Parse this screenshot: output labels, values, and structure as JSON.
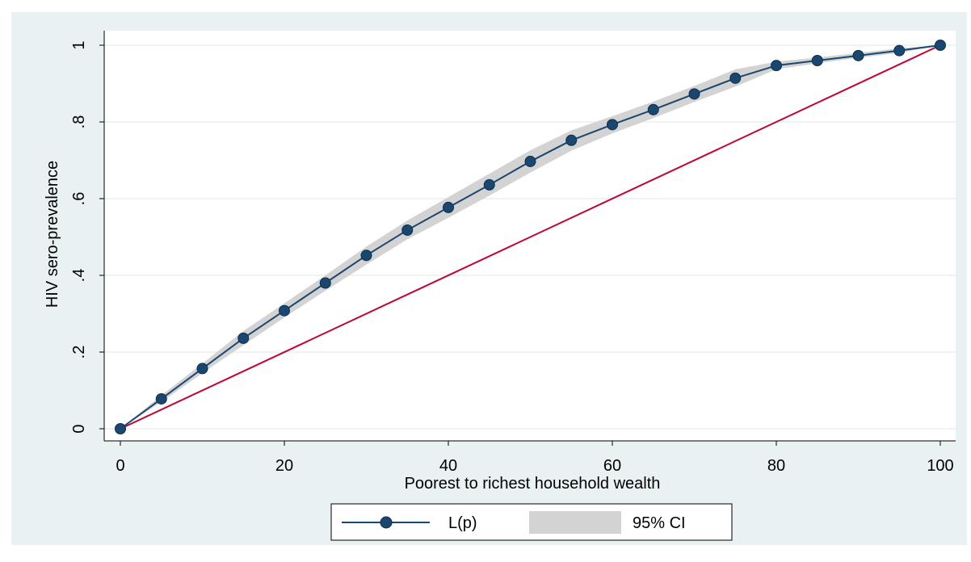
{
  "chart_data": {
    "type": "line",
    "xlabel": "Poorest to richest household wealth",
    "ylabel": "HIV sero-prevalence",
    "xlim": [
      0,
      100
    ],
    "ylim": [
      0,
      1
    ],
    "x_ticks": [
      "0",
      "20",
      "40",
      "60",
      "80",
      "100"
    ],
    "y_ticks": [
      "0",
      ".2",
      ".4",
      ".6",
      ".8",
      "1"
    ],
    "grid": true,
    "legend_position": "bottom",
    "legend": [
      "L(p)",
      "95% CI"
    ],
    "series": [
      {
        "name": "L(p)",
        "x": [
          0,
          5,
          10,
          15,
          20,
          25,
          30,
          35,
          40,
          45,
          50,
          55,
          60,
          65,
          70,
          75,
          80,
          85,
          90,
          95,
          100
        ],
        "y": [
          0,
          0.078,
          0.157,
          0.236,
          0.308,
          0.38,
          0.452,
          0.518,
          0.577,
          0.636,
          0.697,
          0.752,
          0.793,
          0.832,
          0.873,
          0.914,
          0.947,
          0.96,
          0.973,
          0.986,
          1.0
        ]
      },
      {
        "name": "95% CI",
        "x": [
          0,
          5,
          10,
          15,
          20,
          25,
          30,
          35,
          40,
          45,
          50,
          55,
          60,
          65,
          70,
          75,
          80,
          85,
          90,
          95,
          100
        ],
        "lower": [
          0,
          0.07,
          0.145,
          0.218,
          0.29,
          0.36,
          0.428,
          0.494,
          0.55,
          0.608,
          0.668,
          0.725,
          0.77,
          0.81,
          0.852,
          0.892,
          0.937,
          0.953,
          0.967,
          0.98,
          1.0
        ],
        "upper": [
          0,
          0.087,
          0.17,
          0.255,
          0.327,
          0.4,
          0.475,
          0.543,
          0.604,
          0.665,
          0.726,
          0.778,
          0.815,
          0.853,
          0.894,
          0.937,
          0.957,
          0.968,
          0.98,
          0.992,
          1.0
        ]
      },
      {
        "x": [
          0,
          100
        ],
        "y": [
          0,
          1
        ]
      }
    ],
    "colors": {
      "background": "#e9f1f2",
      "plot_background": "#ffffff",
      "grid": "#e9f1f2",
      "line": "#1a476f",
      "ci": "#d3d3d3",
      "equality": "#c10534"
    }
  }
}
